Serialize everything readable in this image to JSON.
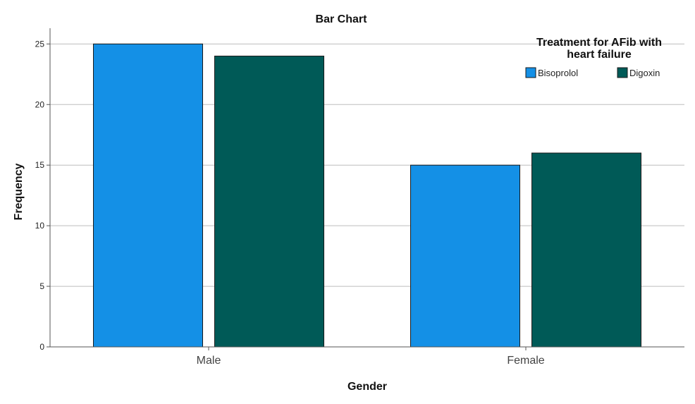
{
  "chart_data": {
    "type": "bar",
    "title": "Bar Chart",
    "xlabel": "Gender",
    "ylabel": "Frequency",
    "categories": [
      "Male",
      "Female"
    ],
    "ylim": [
      0,
      26.3
    ],
    "yticks": [
      0,
      5,
      10,
      15,
      20,
      25
    ],
    "grid": true,
    "legend": {
      "title_lines": [
        "Treatment for AFib with",
        "heart failure"
      ],
      "placement": "top-right"
    },
    "series": [
      {
        "name": "Bisoprolol",
        "color": "#1490e6",
        "values": [
          25,
          15
        ]
      },
      {
        "name": "Digoxin",
        "color": "#005a57",
        "values": [
          24,
          16
        ]
      }
    ]
  }
}
